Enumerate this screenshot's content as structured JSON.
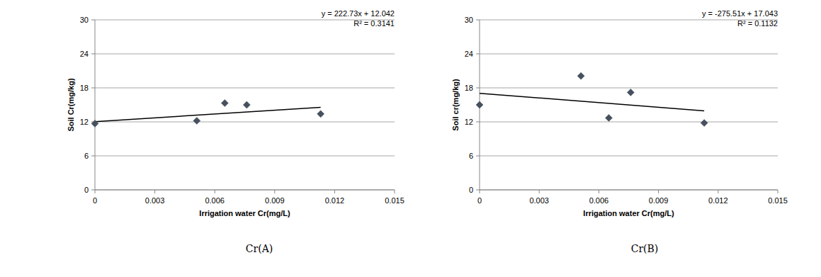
{
  "chart_data": [
    {
      "type": "scatter",
      "title": "Cr(A)",
      "x_label": "Irrigation water Cr(mg/L)",
      "y_label": "Soil Cr(mg/kg)",
      "x": [
        0,
        0.0051,
        0.0065,
        0.0076,
        0.0113
      ],
      "values": [
        11.7,
        12.2,
        15.3,
        15.0,
        13.4
      ],
      "color": "#46505e",
      "marker": "diamond",
      "grid": true,
      "xlim": [
        0,
        0.015
      ],
      "xticks": [
        0,
        0.003,
        0.006,
        0.009,
        0.012,
        0.015
      ],
      "ylim": [
        0,
        30
      ],
      "yticks": [
        0,
        6,
        12,
        18,
        24,
        30
      ],
      "trendline": {
        "slope": 222.73,
        "intercept": 12.042,
        "r2": 0.3141,
        "label": "y = 222.73x + 12.042",
        "r2_label": "R² = 0.3141"
      }
    },
    {
      "type": "scatter",
      "title": "Cr(B)",
      "x_label": "Irrigation water Cr(mg/L)",
      "y_label": "Soil cr(mg/kg)",
      "x": [
        0,
        0.0051,
        0.0065,
        0.0076,
        0.0113
      ],
      "values": [
        15.0,
        20.1,
        12.7,
        17.2,
        11.8
      ],
      "color": "#46505e",
      "marker": "diamond",
      "grid": true,
      "xlim": [
        0,
        0.015
      ],
      "xticks": [
        0,
        0.003,
        0.006,
        0.009,
        0.012,
        0.015
      ],
      "ylim": [
        0,
        30
      ],
      "yticks": [
        0,
        6,
        12,
        18,
        24,
        30
      ],
      "trendline": {
        "slope": -275.51,
        "intercept": 17.043,
        "r2": 0.1132,
        "label": "y = -275.51x + 17.043",
        "r2_label": "R² = 0.1132"
      }
    }
  ]
}
